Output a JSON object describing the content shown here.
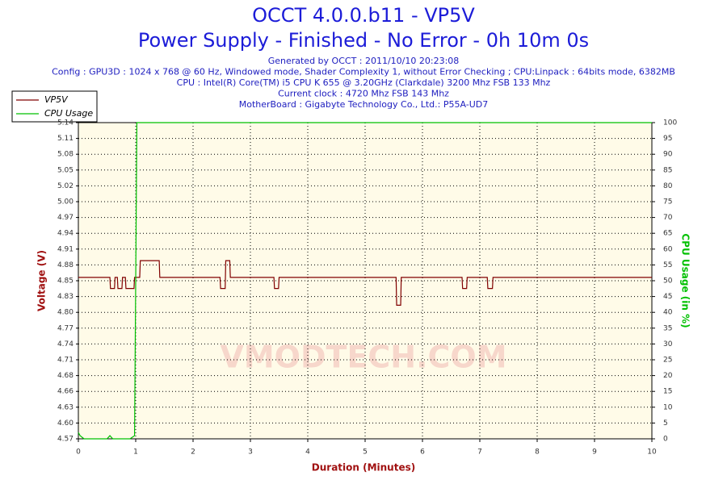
{
  "chart_data": {
    "type": "line",
    "title": "OCCT 4.0.0.b11 - VP5V",
    "subtitle": "Power Supply - Finished - No Error - 0h 10m 0s",
    "info": [
      "Generated by OCCT : 2011/10/10 20:23:08",
      "Config : GPU3D : 1024 x 768 @ 60 Hz, Windowed mode, Shader Complexity 1, without Error Checking ; CPU:Linpack : 64bits mode, 6382MB",
      "CPU : Intel(R) Core(TM) i5 CPU K 655 @ 3.20GHz (Clarkdale) 3200 Mhz FSB 133 Mhz",
      "Current clock : 4720 Mhz FSB 143 Mhz",
      "MotherBoard : Gigabyte Technology Co., Ltd.: P55A-UD7"
    ],
    "watermark": "VMODTECH.COM",
    "x_label": "Duration (Minutes)",
    "y_label": "Voltage (V)",
    "y2_label": "CPU Usage (in %)",
    "xlim": [
      0,
      10
    ],
    "xticks": [
      0,
      1,
      2,
      3,
      4,
      5,
      6,
      7,
      8,
      9,
      10
    ],
    "ylim": [
      4.57,
      5.138
    ],
    "yticks": [
      {
        "value": 4.57,
        "label": "4.57"
      },
      {
        "value": 4.5984,
        "label": "4.60"
      },
      {
        "value": 4.6268,
        "label": "4.63"
      },
      {
        "value": 4.6552,
        "label": "4.66"
      },
      {
        "value": 4.6836,
        "label": "4.68"
      },
      {
        "value": 4.712,
        "label": "4.71"
      },
      {
        "value": 4.7404,
        "label": "4.74"
      },
      {
        "value": 4.7688,
        "label": "4.77"
      },
      {
        "value": 4.7972,
        "label": "4.80"
      },
      {
        "value": 4.8256,
        "label": "4.83"
      },
      {
        "value": 4.854,
        "label": "4.85"
      },
      {
        "value": 4.8824,
        "label": "4.88"
      },
      {
        "value": 4.9108,
        "label": "4.91"
      },
      {
        "value": 4.9392,
        "label": "4.94"
      },
      {
        "value": 4.9676,
        "label": "4.97"
      },
      {
        "value": 4.996,
        "label": "5.00"
      },
      {
        "value": 5.0244,
        "label": "5.02"
      },
      {
        "value": 5.0528,
        "label": "5.05"
      },
      {
        "value": 5.0812,
        "label": "5.08"
      },
      {
        "value": 5.1096,
        "label": "5.11"
      },
      {
        "value": 5.138,
        "label": "5.14"
      }
    ],
    "y2lim": [
      0,
      100
    ],
    "y2ticks": [
      0,
      5,
      10,
      15,
      20,
      25,
      30,
      35,
      40,
      45,
      50,
      55,
      60,
      65,
      70,
      75,
      80,
      85,
      90,
      95,
      100
    ],
    "grid": true,
    "series": [
      {
        "name": "VP5V",
        "color": "#800000",
        "x": [
          0,
          0.55,
          0.56,
          0.63,
          0.64,
          0.68,
          0.69,
          0.76,
          0.77,
          0.82,
          0.83,
          0.97,
          0.98,
          1.07,
          1.08,
          1.41,
          1.42,
          2.47,
          2.48,
          2.56,
          2.57,
          2.64,
          2.65,
          3.41,
          3.42,
          3.49,
          3.5,
          5.54,
          5.55,
          5.62,
          5.63,
          6.69,
          6.7,
          6.77,
          6.78,
          7.13,
          7.14,
          7.22,
          7.23,
          10
        ],
        "values": [
          4.86,
          4.86,
          4.84,
          4.84,
          4.86,
          4.86,
          4.84,
          4.84,
          4.86,
          4.86,
          4.84,
          4.84,
          4.86,
          4.86,
          4.89,
          4.89,
          4.86,
          4.86,
          4.84,
          4.84,
          4.89,
          4.89,
          4.86,
          4.86,
          4.84,
          4.84,
          4.86,
          4.86,
          4.81,
          4.81,
          4.86,
          4.86,
          4.84,
          4.84,
          4.86,
          4.86,
          4.84,
          4.84,
          4.86,
          4.86
        ]
      },
      {
        "name": "CPU Usage",
        "color": "#00c000",
        "axis": "y2",
        "x": [
          0,
          0.03,
          0.1,
          0.2,
          0.3,
          0.5,
          0.55,
          0.6,
          0.9,
          0.98,
          1.0,
          1.02,
          10
        ],
        "values": [
          2,
          1,
          0,
          0,
          0,
          0,
          1,
          0,
          0,
          1,
          50,
          100,
          100
        ]
      }
    ]
  }
}
